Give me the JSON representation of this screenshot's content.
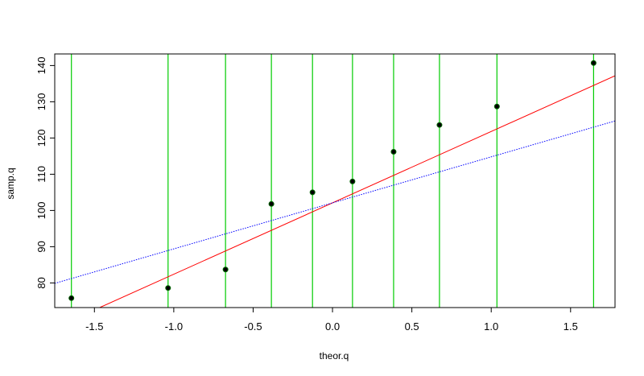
{
  "chart_data": {
    "type": "scatter",
    "title": "",
    "xlabel": "theor.q",
    "ylabel": "samp.q",
    "xlim": [
      -1.75,
      1.78
    ],
    "ylim": [
      73.2,
      143.2
    ],
    "x_ticks": [
      -1.5,
      -1.0,
      -0.5,
      0.0,
      0.5,
      1.0,
      1.5
    ],
    "x_tick_labels": [
      "-1.5",
      "-1.0",
      "-0.5",
      "0.0",
      "0.5",
      "1.0",
      "1.5"
    ],
    "y_ticks": [
      80,
      90,
      100,
      110,
      120,
      130,
      140
    ],
    "y_tick_labels": [
      "80",
      "90",
      "100",
      "110",
      "120",
      "130",
      "140"
    ],
    "points": [
      {
        "x": -1.645,
        "y": 75.8
      },
      {
        "x": -1.036,
        "y": 78.6
      },
      {
        "x": -0.674,
        "y": 83.7
      },
      {
        "x": -0.385,
        "y": 101.8
      },
      {
        "x": -0.126,
        "y": 105.0
      },
      {
        "x": 0.126,
        "y": 108.0
      },
      {
        "x": 0.385,
        "y": 116.2
      },
      {
        "x": 0.674,
        "y": 123.6
      },
      {
        "x": 1.036,
        "y": 128.7
      },
      {
        "x": 1.645,
        "y": 140.7
      }
    ],
    "vertical_lines": [
      -1.645,
      -1.036,
      -0.674,
      -0.385,
      -0.126,
      0.126,
      0.385,
      0.674,
      1.036,
      1.645
    ],
    "reference_lines": [
      {
        "style": "solid",
        "color": "#ff0000",
        "intercept": 102.1,
        "slope": 19.7
      },
      {
        "style": "dotted",
        "color": "#0000ff",
        "intercept": 102.1,
        "slope": 12.7
      }
    ],
    "colors": {
      "points": "#000000",
      "point_outline": "#006400",
      "vertical_lines": "#00cc00",
      "frame": "#000000"
    },
    "grid": false
  }
}
